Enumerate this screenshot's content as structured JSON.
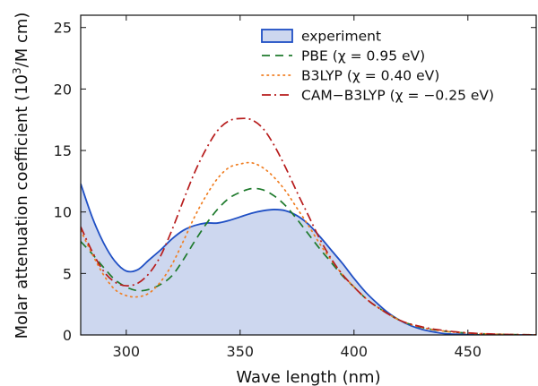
{
  "chart_data": {
    "type": "area",
    "xlabel": "Wave length (nm)",
    "ylabel": "Molar attenuation coefficient (10³/M cm)",
    "ylabel_parts": {
      "pre": "Molar attenuation coefficient (10",
      "sup": "3",
      "post": "/M cm)"
    },
    "xlim": [
      280,
      480
    ],
    "ylim": [
      0,
      26
    ],
    "xticks": [
      300,
      350,
      400,
      450
    ],
    "yticks": [
      0,
      5,
      10,
      15,
      20,
      25
    ],
    "grid": false,
    "legend_position": "top-right",
    "series": [
      {
        "name": "experiment",
        "style": "filled-area",
        "color": "#1f4fc4",
        "fill": "#cdd7ef",
        "x": [
          280,
          285,
          290,
          295,
          300,
          305,
          310,
          315,
          320,
          325,
          330,
          335,
          340,
          345,
          350,
          355,
          360,
          365,
          370,
          375,
          380,
          385,
          390,
          395,
          400,
          405,
          410,
          415,
          420,
          425,
          430,
          435,
          440,
          450,
          460,
          470,
          480
        ],
        "y": [
          12.3,
          9.6,
          7.5,
          6.0,
          5.2,
          5.3,
          6.1,
          6.9,
          7.8,
          8.5,
          8.9,
          9.1,
          9.1,
          9.3,
          9.6,
          9.9,
          10.1,
          10.2,
          10.1,
          9.7,
          9.0,
          8.0,
          6.9,
          5.8,
          4.6,
          3.5,
          2.6,
          1.8,
          1.2,
          0.75,
          0.45,
          0.25,
          0.1,
          0.03,
          0,
          0,
          0
        ]
      },
      {
        "name": "PBE (χ = 0.95 eV)",
        "style": "dashed",
        "color": "#1e7a2c",
        "x": [
          280,
          285,
          290,
          295,
          300,
          305,
          310,
          315,
          320,
          325,
          330,
          335,
          340,
          345,
          350,
          355,
          360,
          365,
          370,
          375,
          380,
          385,
          390,
          395,
          400,
          405,
          410,
          420,
          430,
          440,
          450,
          460,
          470,
          480
        ],
        "y": [
          7.6,
          6.6,
          5.5,
          4.5,
          3.9,
          3.6,
          3.7,
          4.1,
          4.8,
          6.1,
          7.6,
          9.0,
          10.2,
          11.1,
          11.6,
          11.9,
          11.8,
          11.3,
          10.5,
          9.4,
          8.2,
          7.0,
          5.9,
          4.8,
          3.9,
          3.0,
          2.3,
          1.2,
          0.6,
          0.3,
          0.15,
          0.07,
          0.03,
          0.01
        ]
      },
      {
        "name": "B3LYP (χ = 0.40 eV)",
        "style": "dotted",
        "color": "#f07e22",
        "x": [
          280,
          285,
          290,
          295,
          300,
          305,
          310,
          315,
          320,
          325,
          330,
          335,
          340,
          345,
          350,
          355,
          360,
          365,
          370,
          375,
          380,
          385,
          390,
          395,
          400,
          405,
          410,
          420,
          430,
          440,
          450,
          460,
          470,
          480
        ],
        "y": [
          8.5,
          6.6,
          4.9,
          3.7,
          3.2,
          3.1,
          3.4,
          4.3,
          5.7,
          7.6,
          9.6,
          11.3,
          12.7,
          13.6,
          13.9,
          14.0,
          13.6,
          12.8,
          11.7,
          10.3,
          8.9,
          7.4,
          6.1,
          4.9,
          3.9,
          3.0,
          2.3,
          1.2,
          0.6,
          0.3,
          0.15,
          0.07,
          0.03,
          0.01
        ]
      },
      {
        "name": "CAM−B3LYP (χ = −0.25 eV)",
        "style": "dash-dot",
        "color": "#b71c1c",
        "x": [
          280,
          285,
          290,
          295,
          300,
          305,
          310,
          315,
          320,
          325,
          330,
          335,
          340,
          345,
          350,
          355,
          360,
          365,
          370,
          375,
          380,
          385,
          390,
          395,
          400,
          405,
          410,
          420,
          430,
          440,
          450,
          460,
          470,
          480
        ],
        "y": [
          8.8,
          6.8,
          5.2,
          4.3,
          4.0,
          4.2,
          5.0,
          6.4,
          8.5,
          10.9,
          13.2,
          15.1,
          16.6,
          17.4,
          17.6,
          17.5,
          16.8,
          15.4,
          13.6,
          11.6,
          9.7,
          7.8,
          6.2,
          4.9,
          3.9,
          3.0,
          2.3,
          1.2,
          0.65,
          0.35,
          0.17,
          0.08,
          0.03,
          0.01
        ]
      }
    ]
  }
}
